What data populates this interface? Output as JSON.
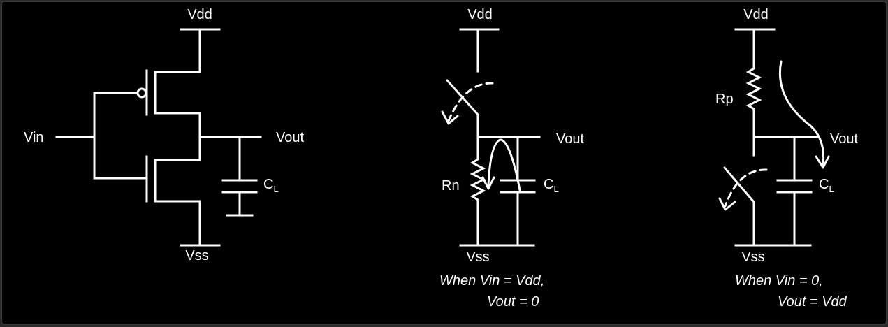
{
  "inverter": {
    "vdd": "Vdd",
    "vss": "Vss",
    "vin": "Vin",
    "vout": "Vout",
    "cl_main": "C",
    "cl_sub": "L"
  },
  "pulldown": {
    "vdd": "Vdd",
    "vss": "Vss",
    "vout": "Vout",
    "rn": "Rn",
    "cl_main": "C",
    "cl_sub": "L",
    "caption_line1": "When Vin = Vdd,",
    "caption_line2": "Vout = 0"
  },
  "pullup": {
    "vdd": "Vdd",
    "vss": "Vss",
    "vout": "Vout",
    "rp": "Rp",
    "cl_main": "C",
    "cl_sub": "L",
    "caption_line1": "When Vin = 0,",
    "caption_line2": "Vout = Vdd"
  },
  "colors": {
    "background": "#000000",
    "stroke": "#ffffff",
    "frame": "#2a2a2a"
  }
}
